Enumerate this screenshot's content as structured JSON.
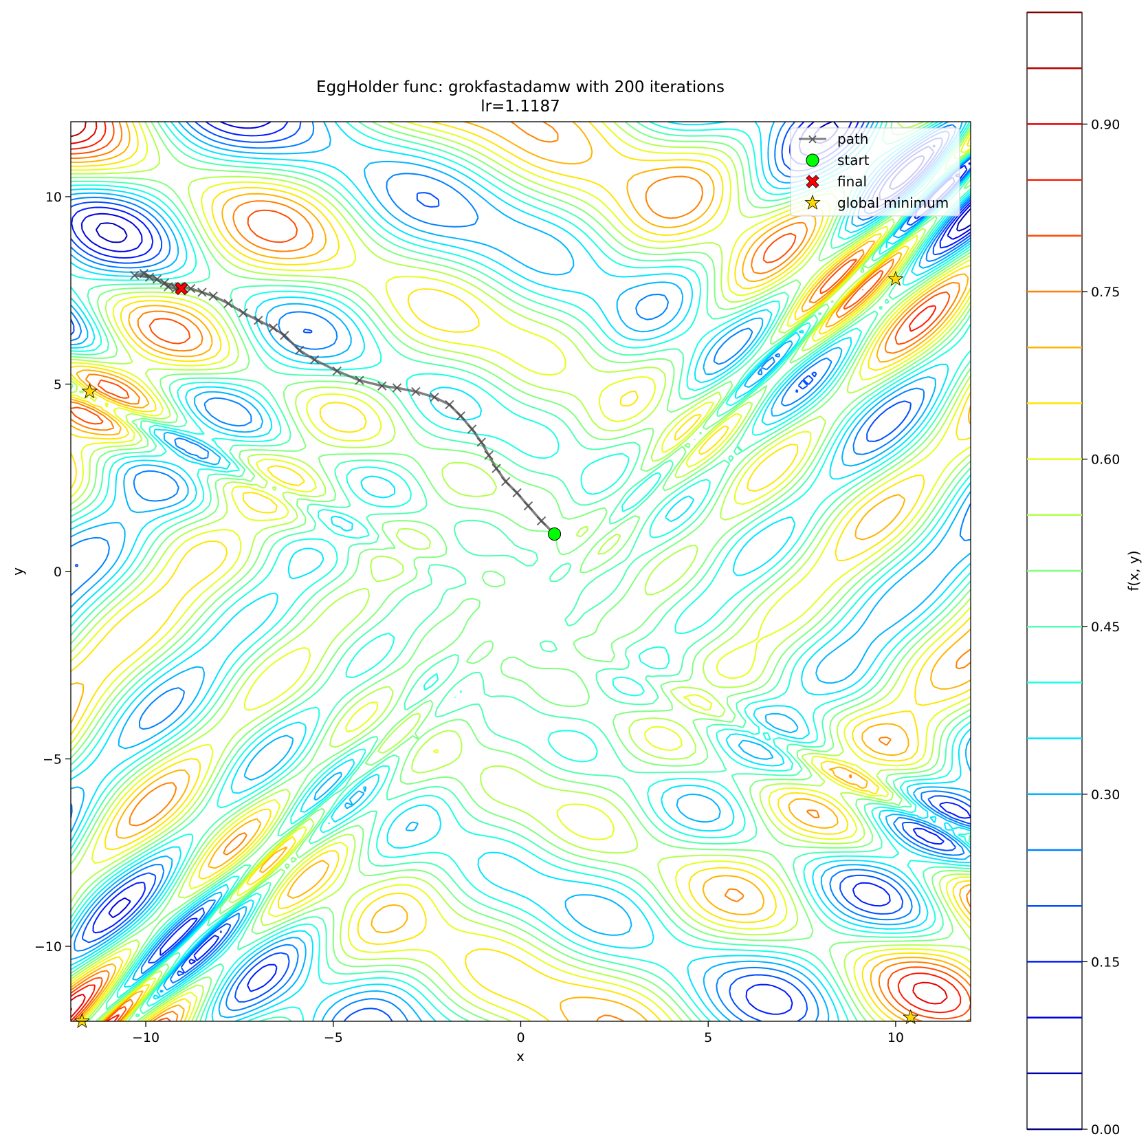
{
  "chart_data": {
    "type": "contour",
    "title": "EggHolder func: grokfastadamw with 200 iterations",
    "subtitle": "lr=1.1187",
    "xlabel": "x",
    "ylabel": "y",
    "xlim": [
      -12,
      12
    ],
    "ylim": [
      -12,
      12
    ],
    "xticks": [
      -10,
      -5,
      0,
      5,
      10
    ],
    "yticks": [
      -10,
      -5,
      0,
      5,
      10
    ],
    "xtick_labels": [
      "−10",
      "−5",
      "0",
      "5",
      "10"
    ],
    "ytick_labels": [
      "−10",
      "−5",
      "0",
      "5",
      "10"
    ],
    "grid": false,
    "colormap": "jet",
    "colorbar": {
      "label": "f(x, y)",
      "range": [
        0,
        1
      ],
      "levels": [
        0.0,
        0.05,
        0.1,
        0.15,
        0.2,
        0.25,
        0.3,
        0.35,
        0.4,
        0.45,
        0.5,
        0.55,
        0.6,
        0.65,
        0.7,
        0.75,
        0.8,
        0.85,
        0.9,
        0.95,
        1.0
      ],
      "ticks": [
        0.0,
        0.15,
        0.3,
        0.45,
        0.6,
        0.75,
        0.9
      ],
      "tick_labels": [
        "0.00",
        "0.15",
        "0.30",
        "0.45",
        "0.60",
        "0.75",
        "0.90"
      ]
    },
    "legend": {
      "placement": "upper-right",
      "entries": [
        {
          "label": "path",
          "color": "#555555",
          "marker": "x-line"
        },
        {
          "label": "start",
          "color": "#00ff00",
          "marker": "circle"
        },
        {
          "label": "final",
          "color": "#ff0000",
          "marker": "X"
        },
        {
          "label": "global minimum",
          "color": "#ffd700",
          "marker": "star"
        }
      ]
    },
    "series": [
      {
        "name": "path",
        "color": "#555555",
        "points": [
          [
            0.9,
            1.0
          ],
          [
            0.55,
            1.35
          ],
          [
            0.2,
            1.75
          ],
          [
            -0.1,
            2.1
          ],
          [
            -0.4,
            2.4
          ],
          [
            -0.65,
            2.75
          ],
          [
            -0.85,
            3.1
          ],
          [
            -1.05,
            3.45
          ],
          [
            -1.3,
            3.8
          ],
          [
            -1.6,
            4.15
          ],
          [
            -1.9,
            4.45
          ],
          [
            -2.3,
            4.65
          ],
          [
            -2.8,
            4.8
          ],
          [
            -3.3,
            4.9
          ],
          [
            -3.7,
            4.95
          ],
          [
            -4.3,
            5.1
          ],
          [
            -4.9,
            5.35
          ],
          [
            -5.5,
            5.65
          ],
          [
            -5.9,
            5.9
          ],
          [
            -6.3,
            6.3
          ],
          [
            -6.6,
            6.5
          ],
          [
            -7.0,
            6.7
          ],
          [
            -7.4,
            6.9
          ],
          [
            -7.8,
            7.15
          ],
          [
            -8.2,
            7.35
          ],
          [
            -8.5,
            7.45
          ],
          [
            -8.8,
            7.55
          ],
          [
            -9.1,
            7.6
          ],
          [
            -9.5,
            7.7
          ],
          [
            -9.9,
            7.85
          ],
          [
            -10.3,
            7.9
          ],
          [
            -10.05,
            7.95
          ],
          [
            -9.7,
            7.8
          ],
          [
            -9.4,
            7.6
          ],
          [
            -9.2,
            7.55
          ],
          [
            -9.05,
            7.55
          ]
        ]
      }
    ],
    "start": {
      "x": 0.9,
      "y": 1.0
    },
    "final": {
      "x": -9.05,
      "y": 7.55
    },
    "global_minima": [
      {
        "x": -11.5,
        "y": 4.8
      },
      {
        "x": 10.0,
        "y": 7.8
      },
      {
        "x": 10.4,
        "y": -11.9
      },
      {
        "x": -11.7,
        "y": -12.0
      }
    ]
  }
}
